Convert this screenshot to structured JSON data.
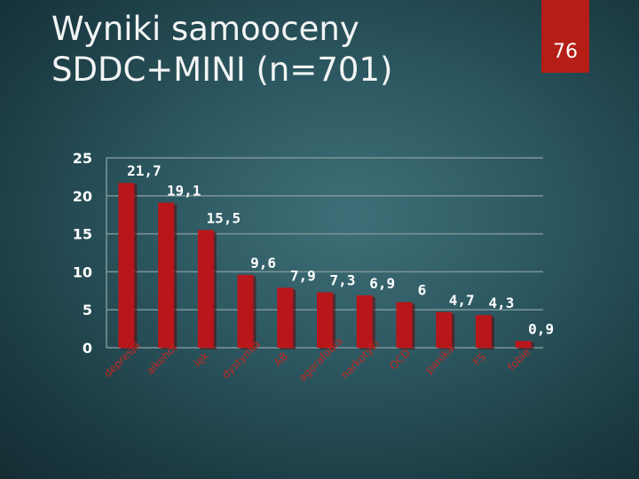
{
  "slide": {
    "title_line1": "Wyniki samooceny",
    "title_line2": "SDDC+MINI (n=701)",
    "page_number": "76"
  },
  "colors": {
    "bar": "#b8161b",
    "bar_shadow": "#5a0c0c",
    "gridline": "#7c9699",
    "badge": "#b51d17",
    "category_label": "#c02a22"
  },
  "chart_data": {
    "type": "bar",
    "categories": [
      "depresja",
      "alkohol",
      "lęk",
      "dystymia",
      "AB",
      "agorafobia",
      "narkotyki",
      "OCD",
      "panika",
      "FS",
      "fobie"
    ],
    "values": [
      21.7,
      19.1,
      15.5,
      9.6,
      7.9,
      7.3,
      6.9,
      6,
      4.7,
      4.3,
      0.9
    ],
    "data_labels": [
      "21,7",
      "19,1",
      "15,5",
      "9,6",
      "7,9",
      "7,3",
      "6,9",
      "6",
      "4,7",
      "4,3",
      "0,9"
    ],
    "y_ticks": [
      0,
      5,
      10,
      15,
      20,
      25
    ],
    "ylim": [
      0,
      25
    ],
    "grid": true,
    "legend": "none",
    "title": "",
    "xlabel": "",
    "ylabel": ""
  }
}
